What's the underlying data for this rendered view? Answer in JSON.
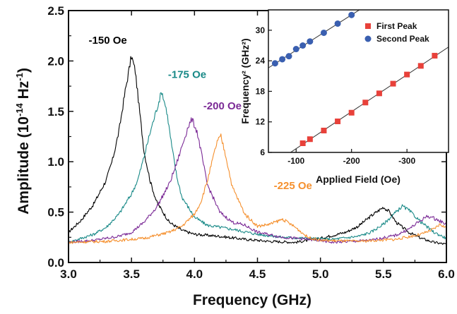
{
  "chart_data": [
    {
      "type": "line",
      "title": "",
      "xlabel": "Frequency (GHz)",
      "ylabel_main": "Amplitude (10",
      "ylabel_exp1": "-14",
      "ylabel_mid": " Hz",
      "ylabel_exp2": "-1",
      "ylabel_end": ")",
      "xlim": [
        3.0,
        6.0
      ],
      "ylim": [
        0.0,
        2.5
      ],
      "xticks": [
        "3.0",
        "3.5",
        "4.0",
        "4.5",
        "5.0",
        "5.5",
        "6.0"
      ],
      "yticks": [
        "0.0",
        "0.5",
        "1.0",
        "1.5",
        "2.0",
        "2.5"
      ],
      "grid": false,
      "series": [
        {
          "name": "-150 Oe",
          "color": "#000000",
          "points": [
            [
              3.0,
              0.3
            ],
            [
              3.1,
              0.42
            ],
            [
              3.2,
              0.58
            ],
            [
              3.3,
              0.82
            ],
            [
              3.35,
              1.02
            ],
            [
              3.4,
              1.3
            ],
            [
              3.45,
              1.7
            ],
            [
              3.5,
              2.05
            ],
            [
              3.53,
              1.9
            ],
            [
              3.56,
              1.55
            ],
            [
              3.6,
              1.1
            ],
            [
              3.65,
              0.8
            ],
            [
              3.7,
              0.6
            ],
            [
              3.8,
              0.4
            ],
            [
              3.9,
              0.32
            ],
            [
              4.0,
              0.28
            ],
            [
              4.2,
              0.26
            ],
            [
              4.4,
              0.23
            ],
            [
              4.6,
              0.21
            ],
            [
              4.8,
              0.2
            ],
            [
              5.0,
              0.24
            ],
            [
              5.2,
              0.3
            ],
            [
              5.3,
              0.36
            ],
            [
              5.4,
              0.46
            ],
            [
              5.5,
              0.55
            ],
            [
              5.55,
              0.5
            ],
            [
              5.6,
              0.4
            ],
            [
              5.7,
              0.3
            ],
            [
              5.8,
              0.24
            ],
            [
              5.9,
              0.2
            ],
            [
              6.0,
              0.18
            ]
          ]
        },
        {
          "name": "-175 Oe",
          "color": "#1a8a88",
          "points": [
            [
              3.0,
              0.2
            ],
            [
              3.2,
              0.28
            ],
            [
              3.3,
              0.35
            ],
            [
              3.4,
              0.48
            ],
            [
              3.5,
              0.68
            ],
            [
              3.55,
              0.82
            ],
            [
              3.6,
              1.05
            ],
            [
              3.65,
              1.3
            ],
            [
              3.7,
              1.52
            ],
            [
              3.74,
              1.7
            ],
            [
              3.78,
              1.5
            ],
            [
              3.82,
              1.15
            ],
            [
              3.86,
              0.85
            ],
            [
              3.9,
              0.65
            ],
            [
              4.0,
              0.45
            ],
            [
              4.1,
              0.37
            ],
            [
              4.3,
              0.33
            ],
            [
              4.5,
              0.28
            ],
            [
              4.7,
              0.25
            ],
            [
              4.9,
              0.24
            ],
            [
              5.1,
              0.23
            ],
            [
              5.3,
              0.26
            ],
            [
              5.4,
              0.3
            ],
            [
              5.5,
              0.38
            ],
            [
              5.6,
              0.5
            ],
            [
              5.65,
              0.56
            ],
            [
              5.7,
              0.52
            ],
            [
              5.8,
              0.4
            ],
            [
              5.9,
              0.3
            ],
            [
              6.0,
              0.24
            ]
          ]
        },
        {
          "name": "-200 Oe",
          "color": "#7b2a96",
          "points": [
            [
              3.0,
              0.2
            ],
            [
              3.2,
              0.22
            ],
            [
              3.4,
              0.26
            ],
            [
              3.5,
              0.3
            ],
            [
              3.6,
              0.4
            ],
            [
              3.7,
              0.55
            ],
            [
              3.8,
              0.78
            ],
            [
              3.85,
              0.95
            ],
            [
              3.9,
              1.15
            ],
            [
              3.95,
              1.35
            ],
            [
              3.98,
              1.42
            ],
            [
              4.02,
              1.3
            ],
            [
              4.06,
              1.05
            ],
            [
              4.1,
              0.78
            ],
            [
              4.2,
              0.5
            ],
            [
              4.3,
              0.4
            ],
            [
              4.4,
              0.37
            ],
            [
              4.5,
              0.3
            ],
            [
              4.7,
              0.25
            ],
            [
              4.9,
              0.23
            ],
            [
              5.1,
              0.2
            ],
            [
              5.4,
              0.22
            ],
            [
              5.6,
              0.27
            ],
            [
              5.7,
              0.33
            ],
            [
              5.8,
              0.42
            ],
            [
              5.85,
              0.46
            ],
            [
              5.9,
              0.44
            ],
            [
              6.0,
              0.38
            ]
          ]
        },
        {
          "name": "-225 Oe",
          "color": "#f5902e",
          "points": [
            [
              3.0,
              0.2
            ],
            [
              3.3,
              0.21
            ],
            [
              3.6,
              0.24
            ],
            [
              3.8,
              0.3
            ],
            [
              3.9,
              0.36
            ],
            [
              4.0,
              0.48
            ],
            [
              4.05,
              0.6
            ],
            [
              4.1,
              0.8
            ],
            [
              4.15,
              1.05
            ],
            [
              4.18,
              1.2
            ],
            [
              4.21,
              1.25
            ],
            [
              4.25,
              1.05
            ],
            [
              4.3,
              0.75
            ],
            [
              4.4,
              0.48
            ],
            [
              4.5,
              0.36
            ],
            [
              4.6,
              0.38
            ],
            [
              4.7,
              0.43
            ],
            [
              4.8,
              0.35
            ],
            [
              4.9,
              0.25
            ],
            [
              5.0,
              0.22
            ],
            [
              5.3,
              0.21
            ],
            [
              5.6,
              0.23
            ],
            [
              5.8,
              0.28
            ],
            [
              5.9,
              0.33
            ],
            [
              5.95,
              0.38
            ],
            [
              6.0,
              0.34
            ]
          ]
        }
      ],
      "annotations": [
        {
          "text": "-150 Oe",
          "x": 3.16,
          "y": 2.17,
          "color": "#000000"
        },
        {
          "text": "-175 Oe",
          "x": 3.79,
          "y": 1.83,
          "color": "#1a8a88"
        },
        {
          "text": "-200 Oe",
          "x": 4.07,
          "y": 1.52,
          "color": "#7b2a96"
        },
        {
          "text": "-225 Oe",
          "x": 4.63,
          "y": 0.73,
          "color": "#f5902e"
        }
      ]
    },
    {
      "type": "scatter",
      "title": "",
      "xlabel": "Applied Field (Oe)",
      "ylabel": "Frequency² (GHz²)",
      "xlim": [
        -50,
        -375
      ],
      "ylim": [
        6,
        34
      ],
      "xticks": [
        -100,
        -200,
        -300
      ],
      "xtick_labels": [
        "-100",
        "-200",
        "-300"
      ],
      "yticks": [
        6,
        12,
        18,
        24,
        30
      ],
      "yticks_labels": [
        "6",
        "12",
        "18",
        "24",
        "30"
      ],
      "legend_position": "top-right",
      "series": [
        {
          "name": "First Peak",
          "color": "#e8413a",
          "marker": "square",
          "x": [
            -112,
            -125,
            -150,
            -175,
            -200,
            -225,
            -250,
            -275,
            -300,
            -325,
            -350
          ],
          "y": [
            7.8,
            8.6,
            10.3,
            12.1,
            13.8,
            15.8,
            17.6,
            19.5,
            21.3,
            23.0,
            25.0
          ]
        },
        {
          "name": "Second Peak",
          "color": "#3a5fb0",
          "marker": "circle",
          "x": [
            -62,
            -75,
            -87,
            -100,
            -112,
            -125,
            -150,
            -175,
            -200
          ],
          "y": [
            23.5,
            24.3,
            24.9,
            26.3,
            27.0,
            27.8,
            29.5,
            31.3,
            33.0
          ]
        }
      ]
    }
  ]
}
